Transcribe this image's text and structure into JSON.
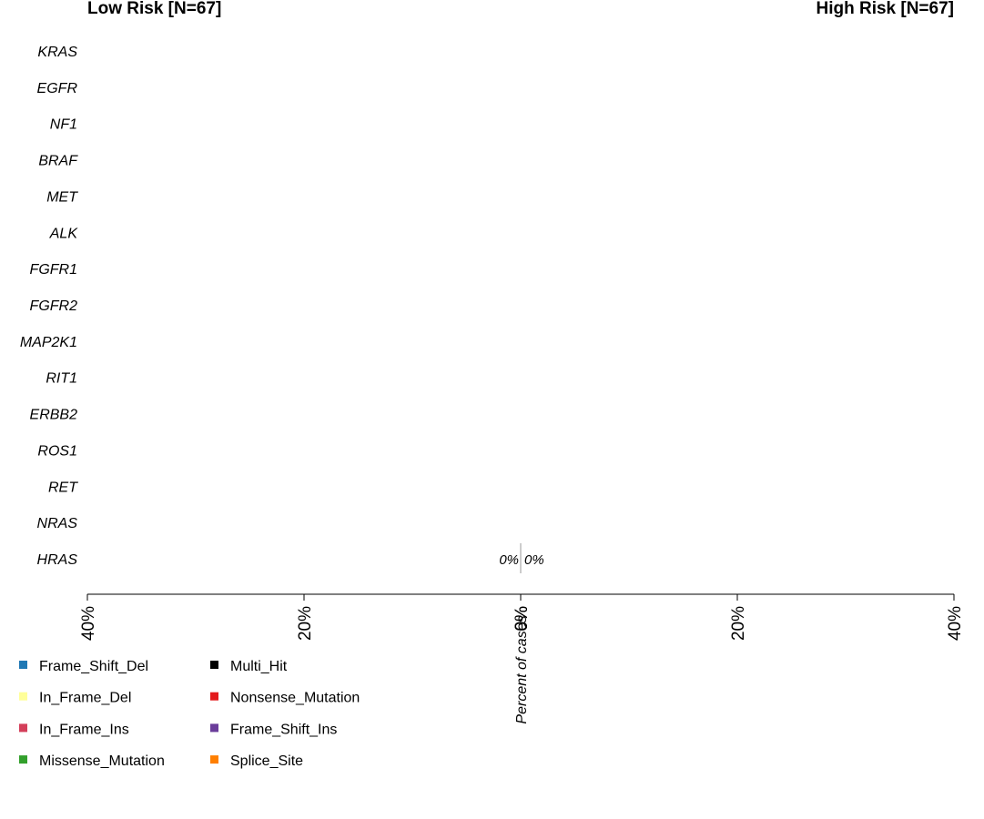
{
  "chart_data": {
    "type": "bar",
    "title_left": "Low Risk [N=67]",
    "title_right": "High Risk [N=67]",
    "xlabel": "Percent of cases",
    "categories": [
      "KRAS",
      "EGFR",
      "NF1",
      "BRAF",
      "MET",
      "ALK",
      "FGFR1",
      "FGFR2",
      "MAP2K1",
      "RIT1",
      "ERBB2",
      "ROS1",
      "RET",
      "NRAS",
      "HRAS"
    ],
    "left_axis_ticks": [
      "40%",
      "20%",
      "0%"
    ],
    "right_axis_ticks": [
      "0%",
      "20%",
      "40%"
    ],
    "xlim": [
      -40,
      40
    ],
    "series": [
      {
        "values": [
          0,
          0,
          0,
          0,
          0,
          0,
          0,
          0,
          0,
          0,
          0,
          0,
          0,
          0,
          0
        ]
      },
      {
        "values": [
          0,
          0,
          0,
          0,
          0,
          0,
          0,
          0,
          0,
          0,
          0,
          0,
          0,
          0,
          0
        ]
      }
    ],
    "data_labels": [
      {
        "category": "HRAS",
        "left": "0%",
        "right": "0%"
      }
    ],
    "legend": [
      {
        "label": "Frame_Shift_Del",
        "color": "#1f78b4"
      },
      {
        "label": "In_Frame_Del",
        "color": "#ffff99"
      },
      {
        "label": "In_Frame_Ins",
        "color": "#d43f5a"
      },
      {
        "label": "Missense_Mutation",
        "color": "#33a02c"
      },
      {
        "label": "Multi_Hit",
        "color": "#000000"
      },
      {
        "label": "Nonsense_Mutation",
        "color": "#e31a1c"
      },
      {
        "label": "Frame_Shift_Ins",
        "color": "#6a3d9a"
      },
      {
        "label": "Splice_Site",
        "color": "#ff7f00"
      }
    ]
  }
}
